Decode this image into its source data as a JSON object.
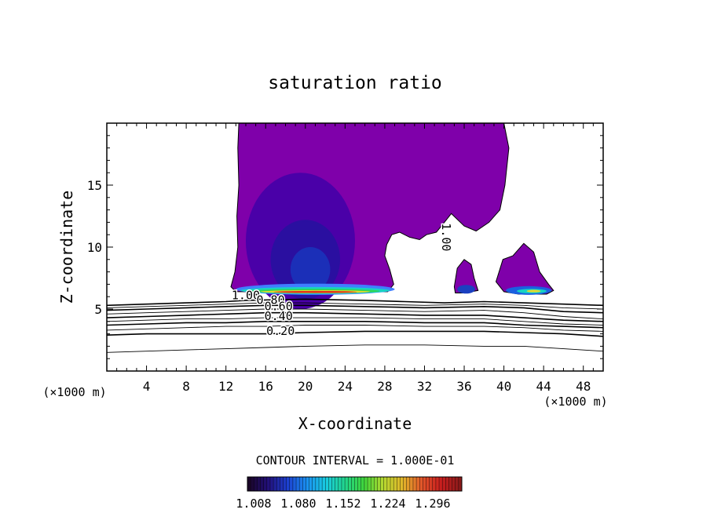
{
  "chart_data": {
    "type": "contour",
    "title": "saturation ratio",
    "xlabel": "X-coordinate",
    "ylabel": "Z-coordinate",
    "x_unit_left": "(×1000 m)",
    "x_unit_right": "(×1000 m)",
    "xlim": [
      0,
      50
    ],
    "ylim": [
      0,
      20
    ],
    "x_ticks": [
      4,
      8,
      12,
      16,
      20,
      24,
      28,
      32,
      36,
      40,
      44,
      48
    ],
    "y_ticks": [
      5,
      10,
      15
    ],
    "contour_interval_text": "CONTOUR INTERVAL = 1.000E-01",
    "contour_labels": [
      {
        "text": "1.00",
        "x": 14.0,
        "y": 5.8
      },
      {
        "text": "0.80",
        "x": 16.5,
        "y": 5.4
      },
      {
        "text": "0.60",
        "x": 17.3,
        "y": 4.9
      },
      {
        "text": "0.40",
        "x": 17.3,
        "y": 4.1
      },
      {
        "text": "0.20",
        "x": 17.5,
        "y": 2.9
      },
      {
        "text": "1.00",
        "x": 33.8,
        "y": 10.8,
        "rotate": 90
      }
    ],
    "contour_lines": [
      {
        "level": 1.0,
        "points": [
          [
            0,
            5.3
          ],
          [
            4,
            5.4
          ],
          [
            8,
            5.5
          ],
          [
            12,
            5.6
          ],
          [
            14,
            5.7
          ],
          [
            20,
            5.8
          ],
          [
            26,
            5.7
          ],
          [
            30,
            5.6
          ],
          [
            34,
            5.5
          ],
          [
            38,
            5.6
          ],
          [
            42,
            5.5
          ],
          [
            46,
            5.4
          ],
          [
            50,
            5.3
          ]
        ]
      },
      {
        "level": 0.9,
        "points": [
          [
            0,
            5.1
          ],
          [
            4,
            5.2
          ],
          [
            8,
            5.3
          ],
          [
            12,
            5.4
          ],
          [
            16,
            5.5
          ],
          [
            20,
            5.5
          ],
          [
            26,
            5.4
          ],
          [
            32,
            5.3
          ],
          [
            38,
            5.4
          ],
          [
            42,
            5.3
          ],
          [
            46,
            5.1
          ],
          [
            50,
            5.0
          ]
        ]
      },
      {
        "level": 0.8,
        "points": [
          [
            0,
            4.9
          ],
          [
            4,
            5.0
          ],
          [
            8,
            5.1
          ],
          [
            12,
            5.2
          ],
          [
            16,
            5.3
          ],
          [
            20,
            5.3
          ],
          [
            26,
            5.2
          ],
          [
            32,
            5.1
          ],
          [
            38,
            5.2
          ],
          [
            42,
            5.1
          ],
          [
            46,
            4.8
          ],
          [
            50,
            4.7
          ]
        ]
      },
      {
        "level": 0.7,
        "points": [
          [
            0,
            4.6
          ],
          [
            4,
            4.7
          ],
          [
            8,
            4.8
          ],
          [
            12,
            4.9
          ],
          [
            16,
            5.0
          ],
          [
            20,
            5.0
          ],
          [
            26,
            4.9
          ],
          [
            32,
            4.8
          ],
          [
            38,
            4.9
          ],
          [
            42,
            4.7
          ],
          [
            46,
            4.4
          ],
          [
            50,
            4.2
          ]
        ]
      },
      {
        "level": 0.6,
        "points": [
          [
            0,
            4.3
          ],
          [
            4,
            4.4
          ],
          [
            8,
            4.5
          ],
          [
            12,
            4.6
          ],
          [
            16,
            4.7
          ],
          [
            20,
            4.7
          ],
          [
            26,
            4.6
          ],
          [
            32,
            4.5
          ],
          [
            38,
            4.5
          ],
          [
            42,
            4.3
          ],
          [
            46,
            4.1
          ],
          [
            50,
            4.0
          ]
        ]
      },
      {
        "level": 0.5,
        "points": [
          [
            0,
            4.0
          ],
          [
            4,
            4.1
          ],
          [
            8,
            4.2
          ],
          [
            12,
            4.2
          ],
          [
            16,
            4.3
          ],
          [
            20,
            4.3
          ],
          [
            26,
            4.3
          ],
          [
            32,
            4.2
          ],
          [
            38,
            4.2
          ],
          [
            42,
            4.0
          ],
          [
            46,
            3.8
          ],
          [
            50,
            3.7
          ]
        ]
      },
      {
        "level": 0.4,
        "points": [
          [
            0,
            3.7
          ],
          [
            4,
            3.8
          ],
          [
            8,
            3.9
          ],
          [
            12,
            3.9
          ],
          [
            16,
            4.0
          ],
          [
            20,
            4.0
          ],
          [
            26,
            4.0
          ],
          [
            32,
            3.9
          ],
          [
            38,
            3.9
          ],
          [
            42,
            3.7
          ],
          [
            46,
            3.6
          ],
          [
            50,
            3.5
          ]
        ]
      },
      {
        "level": 0.3,
        "points": [
          [
            0,
            3.3
          ],
          [
            4,
            3.4
          ],
          [
            8,
            3.5
          ],
          [
            12,
            3.6
          ],
          [
            16,
            3.6
          ],
          [
            20,
            3.7
          ],
          [
            26,
            3.7
          ],
          [
            32,
            3.6
          ],
          [
            38,
            3.6
          ],
          [
            42,
            3.5
          ],
          [
            46,
            3.3
          ],
          [
            50,
            3.2
          ]
        ]
      },
      {
        "level": 0.2,
        "points": [
          [
            0,
            2.9
          ],
          [
            4,
            3.0
          ],
          [
            8,
            3.0
          ],
          [
            12,
            3.0
          ],
          [
            16,
            3.0
          ],
          [
            20,
            3.1
          ],
          [
            26,
            3.2
          ],
          [
            32,
            3.2
          ],
          [
            38,
            3.2
          ],
          [
            42,
            3.1
          ],
          [
            46,
            3.0
          ],
          [
            50,
            2.8
          ]
        ]
      },
      {
        "level": 0.1,
        "points": [
          [
            0,
            1.5
          ],
          [
            4,
            1.6
          ],
          [
            8,
            1.7
          ],
          [
            12,
            1.8
          ],
          [
            16,
            1.9
          ],
          [
            20,
            2.0
          ],
          [
            26,
            2.1
          ],
          [
            32,
            2.1
          ],
          [
            38,
            2.0
          ],
          [
            42,
            2.0
          ],
          [
            46,
            1.8
          ],
          [
            50,
            1.6
          ]
        ]
      }
    ],
    "shaded_regions": [
      {
        "name": "anvil",
        "color": "#7f00aa",
        "outline": [
          [
            13.3,
            20
          ],
          [
            40.0,
            20
          ],
          [
            40.5,
            18
          ],
          [
            40.1,
            15
          ],
          [
            39.6,
            13
          ],
          [
            38.5,
            12
          ],
          [
            37.2,
            11.3
          ],
          [
            36.0,
            11.7
          ],
          [
            34.7,
            12.7
          ],
          [
            34.0,
            12.0
          ],
          [
            33.2,
            11.2
          ],
          [
            32.2,
            11.0
          ],
          [
            31.5,
            10.6
          ],
          [
            30.5,
            10.8
          ],
          [
            29.5,
            11.2
          ],
          [
            28.7,
            11.0
          ],
          [
            28.2,
            10.2
          ],
          [
            28.0,
            9.3
          ],
          [
            28.5,
            8.2
          ],
          [
            28.9,
            7.0
          ],
          [
            28.3,
            6.4
          ],
          [
            22,
            6.4
          ],
          [
            16,
            6.4
          ],
          [
            13.0,
            6.4
          ],
          [
            12.5,
            6.8
          ],
          [
            12.9,
            8.0
          ],
          [
            13.2,
            10.0
          ],
          [
            13.1,
            12.5
          ],
          [
            13.3,
            15
          ],
          [
            13.2,
            18
          ]
        ]
      },
      {
        "name": "right-cloud",
        "color": "#7f00aa",
        "outline": [
          [
            39.2,
            7.2
          ],
          [
            39.9,
            9.0
          ],
          [
            40.9,
            9.3
          ],
          [
            42.0,
            10.3
          ],
          [
            43.0,
            9.6
          ],
          [
            43.6,
            8.0
          ],
          [
            44.5,
            7.0
          ],
          [
            45.0,
            6.5
          ],
          [
            44.3,
            6.2
          ],
          [
            41.5,
            6.2
          ],
          [
            40.0,
            6.4
          ]
        ]
      },
      {
        "name": "small-cloud",
        "color": "#7f00aa",
        "outline": [
          [
            35.0,
            6.8
          ],
          [
            35.3,
            8.3
          ],
          [
            36.0,
            9.0
          ],
          [
            36.7,
            8.6
          ],
          [
            37.0,
            7.5
          ],
          [
            37.4,
            6.5
          ],
          [
            36.0,
            6.3
          ],
          [
            35.1,
            6.3
          ]
        ]
      },
      {
        "name": "core-1",
        "color": "#4a00a8",
        "ellipse": [
          19.5,
          10.5,
          5.5,
          5.5
        ]
      },
      {
        "name": "core-2",
        "color": "#2a0fa0",
        "ellipse": [
          20.0,
          9.0,
          3.5,
          3.2
        ]
      },
      {
        "name": "core-3",
        "color": "#1b2fb8",
        "ellipse": [
          20.5,
          8.2,
          2.0,
          1.8
        ]
      },
      {
        "name": "base-band",
        "color": "#3f7fff",
        "ellipse": [
          21.0,
          6.6,
          8.0,
          0.45
        ]
      },
      {
        "name": "base-cyan",
        "color": "#17d3c3",
        "ellipse": [
          21.0,
          6.5,
          7.5,
          0.28
        ]
      },
      {
        "name": "base-green",
        "color": "#31d651",
        "ellipse": [
          21.0,
          6.45,
          6.5,
          0.18
        ]
      },
      {
        "name": "base-yellow",
        "color": "#e3d930",
        "ellipse": [
          21.0,
          6.4,
          5.5,
          0.12
        ]
      },
      {
        "name": "base-red",
        "color": "#e3311b",
        "ellipse": [
          21.0,
          6.38,
          4.2,
          0.08
        ]
      },
      {
        "name": "right-band",
        "color": "#1b60e0",
        "ellipse": [
          42.5,
          6.5,
          2.3,
          0.35
        ]
      },
      {
        "name": "right-cyan",
        "color": "#17d3c3",
        "ellipse": [
          42.8,
          6.45,
          1.5,
          0.18
        ]
      },
      {
        "name": "right-yellow",
        "color": "#e3d930",
        "ellipse": [
          43.0,
          6.45,
          0.7,
          0.1
        ]
      },
      {
        "name": "small-band",
        "color": "#1b40c0",
        "ellipse": [
          36.2,
          6.6,
          0.9,
          0.35
        ]
      }
    ],
    "colorbar": {
      "ticks": [
        "1.008",
        "1.080",
        "1.152",
        "1.224",
        "1.296"
      ],
      "colors": [
        "#1a0528",
        "#22107a",
        "#1c3fcf",
        "#1a8ff0",
        "#19cbe0",
        "#21d58c",
        "#3fd53b",
        "#b6d830",
        "#e2b62a",
        "#e2552a",
        "#c81e1e",
        "#8a1a1a"
      ]
    }
  }
}
